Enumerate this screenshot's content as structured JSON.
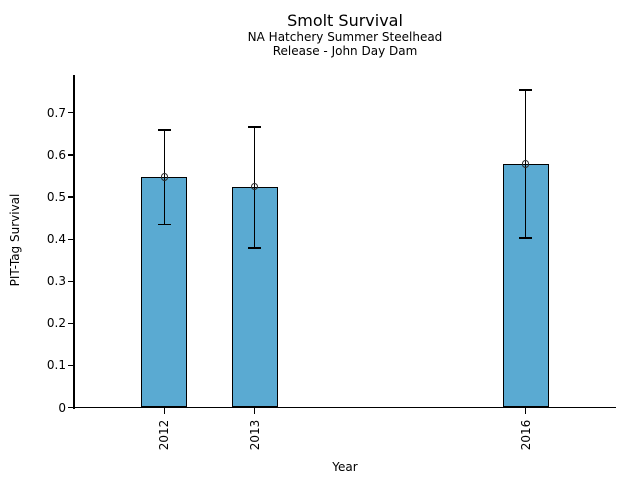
{
  "chart_data": {
    "type": "bar",
    "title": "Smolt Survival",
    "subtitle_line1": "NA Hatchery Summer Steelhead",
    "subtitle_line2": "Release - John Day Dam",
    "xlabel": "Year",
    "ylabel": "PIT-Tag Survival",
    "categories": [
      "2012",
      "2013",
      "2016"
    ],
    "x_numeric": [
      2012,
      2013,
      2016
    ],
    "series": [
      {
        "name": "PIT-Tag Survival",
        "values": [
          0.548,
          0.525,
          0.579
        ],
        "error_low": [
          0.435,
          0.379,
          0.403
        ],
        "error_high": [
          0.659,
          0.666,
          0.754
        ]
      }
    ],
    "ytick_values": [
      0,
      0.1,
      0.2,
      0.3,
      0.4,
      0.5,
      0.6,
      0.7
    ],
    "ytick_labels": [
      "0",
      "0.1",
      "0.2",
      "0.3",
      "0.4",
      "0.5",
      "0.6",
      "0.7"
    ],
    "ylim": [
      0,
      0.79
    ],
    "xlim": [
      2011,
      2017
    ],
    "grid": false,
    "legend_position": "none",
    "bar_color": "#5aaad2",
    "bar_edge_color": "#000000",
    "errorbar_color": "#000000",
    "marker": "open-circle",
    "marker_edge_color": "#2b2b2b",
    "background_color": "#ffffff"
  }
}
